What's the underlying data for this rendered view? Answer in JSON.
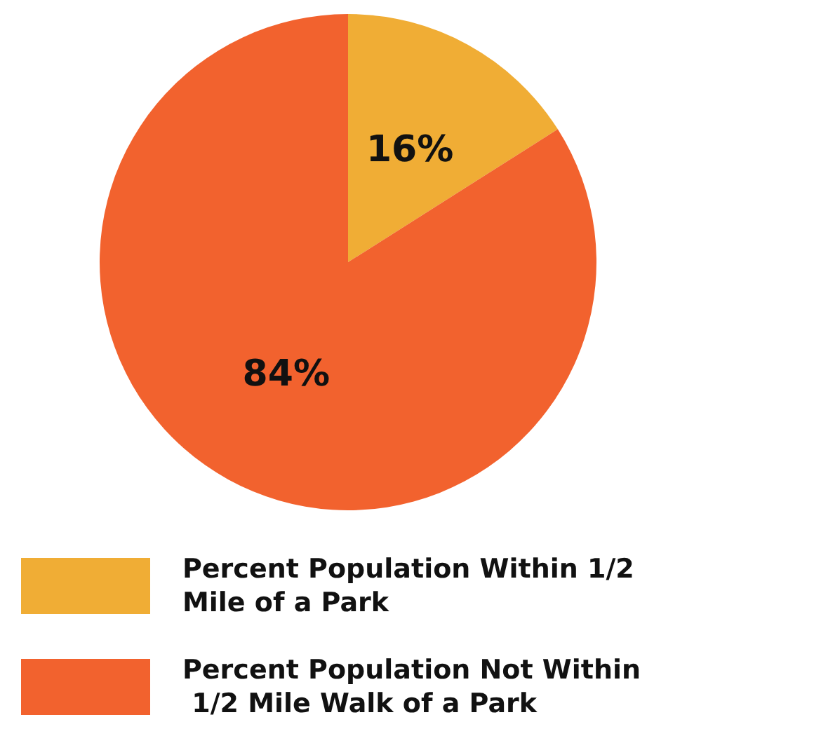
{
  "chart_data": {
    "type": "pie",
    "categories": [
      "Percent Population Within 1/2 Mile of a Park",
      "Percent Population Not Within 1/2 Mile Walk of a Park"
    ],
    "values": [
      16,
      84
    ],
    "colors": [
      "#f0ad35",
      "#f2622e"
    ],
    "value_labels": [
      "16%",
      "84%"
    ],
    "legend": "bottom"
  }
}
